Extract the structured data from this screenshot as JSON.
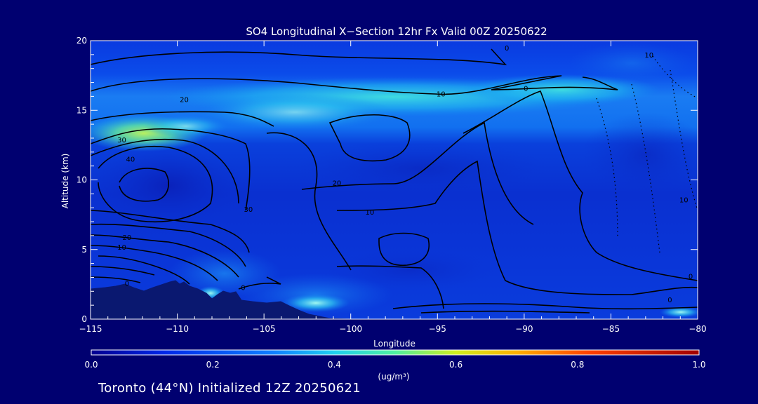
{
  "chart_data": {
    "type": "heatmap",
    "title": "SO4 Longitudinal X−Section 12hr  Fx Valid 00Z 20250622",
    "xlabel": "Longitude",
    "ylabel": "Altitude (km)",
    "xlim": [
      -115,
      -80
    ],
    "ylim": [
      0,
      20
    ],
    "x_ticks": [
      "−115",
      "−110",
      "−105",
      "−100",
      "−95",
      "−90",
      "−85",
      "−80"
    ],
    "x_tick_values": [
      -115,
      -110,
      -105,
      -100,
      -95,
      -90,
      -85,
      -80
    ],
    "y_ticks": [
      "0",
      "5",
      "10",
      "15",
      "20"
    ],
    "y_tick_values": [
      0,
      5,
      10,
      15,
      20
    ],
    "colorbar": {
      "ticks": [
        "0.0",
        "0.2",
        "0.4",
        "0.6",
        "0.8",
        "1.0"
      ],
      "tick_values": [
        0.0,
        0.2,
        0.4,
        0.6,
        0.8,
        1.0
      ],
      "unit_label": "(ug/m³)",
      "range": [
        0.0,
        1.0
      ]
    },
    "contour_labels": [
      {
        "text": "0",
        "lon": -91,
        "alt": 19.3
      },
      {
        "text": "10",
        "lon": -94.8,
        "alt": 16.0
      },
      {
        "text": "0",
        "lon": -89.9,
        "alt": 16.4
      },
      {
        "text": "20",
        "lon": -109.6,
        "alt": 15.6
      },
      {
        "text": "30",
        "lon": -113.2,
        "alt": 12.7
      },
      {
        "text": "40",
        "lon": -112.7,
        "alt": 11.3
      },
      {
        "text": "20",
        "lon": -100.8,
        "alt": 9.6
      },
      {
        "text": "10",
        "lon": -98.9,
        "alt": 7.5
      },
      {
        "text": "30",
        "lon": -105.9,
        "alt": 7.7
      },
      {
        "text": "20",
        "lon": -112.9,
        "alt": 5.7
      },
      {
        "text": "10",
        "lon": -113.2,
        "alt": 5.0
      },
      {
        "text": "0",
        "lon": -106.2,
        "alt": 2.1
      },
      {
        "text": "0",
        "lon": -112.9,
        "alt": 2.4
      },
      {
        "text": "10",
        "lon": -80.8,
        "alt": 8.4
      },
      {
        "text": "0",
        "lon": -80.4,
        "alt": 2.9
      },
      {
        "text": "0",
        "lon": -81.6,
        "alt": 1.2
      },
      {
        "text": "10",
        "lon": -82.8,
        "alt": 18.8
      }
    ]
  },
  "footer": {
    "text": "Toronto (44°N) Initialized 12Z 20250621"
  },
  "colors": {
    "background": "#000070",
    "field_low": "#0a2ad8",
    "field_mid": "#14a0f0",
    "field_high": "#9cf070",
    "contour": "#000000",
    "terrain": "#0a1870"
  }
}
